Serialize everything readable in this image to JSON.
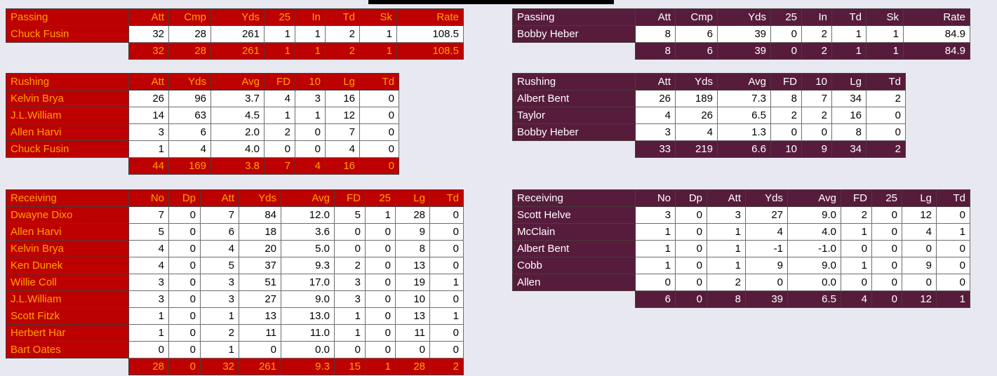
{
  "page": {
    "bg": "#e8e8f0",
    "top_bar_color": "#000000"
  },
  "teams": [
    {
      "side": "left",
      "accent": "#bd0000",
      "text_color": "#ffa000",
      "tables": [
        {
          "id": "passing",
          "title": "Passing",
          "headers": [
            "Att",
            "Cmp",
            "Yds",
            "25",
            "In",
            "Td",
            "Sk",
            "Rate"
          ],
          "rows": [
            {
              "name": "Chuck Fusin",
              "values": [
                "32",
                "28",
                "261",
                "1",
                "1",
                "2",
                "1",
                "108.5"
              ]
            }
          ],
          "totals": [
            "32",
            "28",
            "261",
            "1",
            "1",
            "2",
            "1",
            "108.5"
          ]
        },
        {
          "id": "rushing",
          "title": "Rushing",
          "headers": [
            "Att",
            "Yds",
            "Avg",
            "FD",
            "10",
            "Lg",
            "Td"
          ],
          "rows": [
            {
              "name": "Kelvin Brya",
              "values": [
                "26",
                "96",
                "3.7",
                "4",
                "3",
                "16",
                "0"
              ]
            },
            {
              "name": "J.L.William",
              "values": [
                "14",
                "63",
                "4.5",
                "1",
                "1",
                "12",
                "0"
              ]
            },
            {
              "name": "Allen Harvi",
              "values": [
                "3",
                "6",
                "2.0",
                "2",
                "0",
                "7",
                "0"
              ]
            },
            {
              "name": "Chuck Fusin",
              "values": [
                "1",
                "4",
                "4.0",
                "0",
                "0",
                "4",
                "0"
              ]
            }
          ],
          "totals": [
            "44",
            "169",
            "3.8",
            "7",
            "4",
            "16",
            "0"
          ]
        },
        {
          "id": "receiving",
          "title": "Receiving",
          "headers": [
            "No",
            "Dp",
            "Att",
            "Yds",
            "Avg",
            "FD",
            "25",
            "Lg",
            "Td"
          ],
          "rows": [
            {
              "name": "Dwayne Dixo",
              "values": [
                "7",
                "0",
                "7",
                "84",
                "12.0",
                "5",
                "1",
                "28",
                "0"
              ]
            },
            {
              "name": "Allen Harvi",
              "values": [
                "5",
                "0",
                "6",
                "18",
                "3.6",
                "0",
                "0",
                "9",
                "0"
              ]
            },
            {
              "name": "Kelvin Brya",
              "values": [
                "4",
                "0",
                "4",
                "20",
                "5.0",
                "0",
                "0",
                "8",
                "0"
              ]
            },
            {
              "name": "Ken Dunek",
              "values": [
                "4",
                "0",
                "5",
                "37",
                "9.3",
                "2",
                "0",
                "13",
                "0"
              ]
            },
            {
              "name": "Willie Coll",
              "values": [
                "3",
                "0",
                "3",
                "51",
                "17.0",
                "3",
                "0",
                "19",
                "1"
              ]
            },
            {
              "name": "J.L.William",
              "values": [
                "3",
                "0",
                "3",
                "27",
                "9.0",
                "3",
                "0",
                "10",
                "0"
              ]
            },
            {
              "name": "Scott Fitzk",
              "values": [
                "1",
                "0",
                "1",
                "13",
                "13.0",
                "1",
                "0",
                "13",
                "1"
              ]
            },
            {
              "name": "Herbert Har",
              "values": [
                "1",
                "0",
                "2",
                "11",
                "11.0",
                "1",
                "0",
                "11",
                "0"
              ]
            },
            {
              "name": "Bart Oates",
              "values": [
                "0",
                "0",
                "1",
                "0",
                "0.0",
                "0",
                "0",
                "0",
                "0"
              ]
            }
          ],
          "totals": [
            "28",
            "0",
            "32",
            "261",
            "9.3",
            "15",
            "1",
            "28",
            "2"
          ]
        }
      ]
    },
    {
      "side": "right",
      "accent": "#571c3c",
      "text_color": "#ffffff",
      "tables": [
        {
          "id": "passing",
          "title": "Passing",
          "headers": [
            "Att",
            "Cmp",
            "Yds",
            "25",
            "In",
            "Td",
            "Sk",
            "Rate"
          ],
          "rows": [
            {
              "name": "Bobby Heber",
              "values": [
                "8",
                "6",
                "39",
                "0",
                "2",
                "1",
                "1",
                "84.9"
              ]
            }
          ],
          "totals": [
            "8",
            "6",
            "39",
            "0",
            "2",
            "1",
            "1",
            "84.9"
          ]
        },
        {
          "id": "rushing",
          "title": "Rushing",
          "headers": [
            "Att",
            "Yds",
            "Avg",
            "FD",
            "10",
            "Lg",
            "Td"
          ],
          "rows": [
            {
              "name": "Albert Bent",
              "values": [
                "26",
                "189",
                "7.3",
                "8",
                "7",
                "34",
                "2"
              ]
            },
            {
              "name": "Taylor",
              "values": [
                "4",
                "26",
                "6.5",
                "2",
                "2",
                "16",
                "0"
              ]
            },
            {
              "name": "Bobby Heber",
              "values": [
                "3",
                "4",
                "1.3",
                "0",
                "0",
                "8",
                "0"
              ]
            }
          ],
          "totals": [
            "33",
            "219",
            "6.6",
            "10",
            "9",
            "34",
            "2"
          ]
        },
        {
          "id": "receiving",
          "title": "Receiving",
          "headers": [
            "No",
            "Dp",
            "Att",
            "Yds",
            "Avg",
            "FD",
            "25",
            "Lg",
            "Td"
          ],
          "rows": [
            {
              "name": "Scott Helve",
              "values": [
                "3",
                "0",
                "3",
                "27",
                "9.0",
                "2",
                "0",
                "12",
                "0"
              ]
            },
            {
              "name": "McClain",
              "values": [
                "1",
                "0",
                "1",
                "4",
                "4.0",
                "1",
                "0",
                "4",
                "1"
              ]
            },
            {
              "name": "Albert Bent",
              "values": [
                "1",
                "0",
                "1",
                "-1",
                "-1.0",
                "0",
                "0",
                "0",
                "0"
              ]
            },
            {
              "name": "Cobb",
              "values": [
                "1",
                "0",
                "1",
                "9",
                "9.0",
                "1",
                "0",
                "9",
                "0"
              ]
            },
            {
              "name": "Allen",
              "values": [
                "0",
                "0",
                "2",
                "0",
                "0.0",
                "0",
                "0",
                "0",
                "0"
              ]
            }
          ],
          "totals": [
            "6",
            "0",
            "8",
            "39",
            "6.5",
            "4",
            "0",
            "12",
            "1"
          ]
        }
      ]
    }
  ]
}
